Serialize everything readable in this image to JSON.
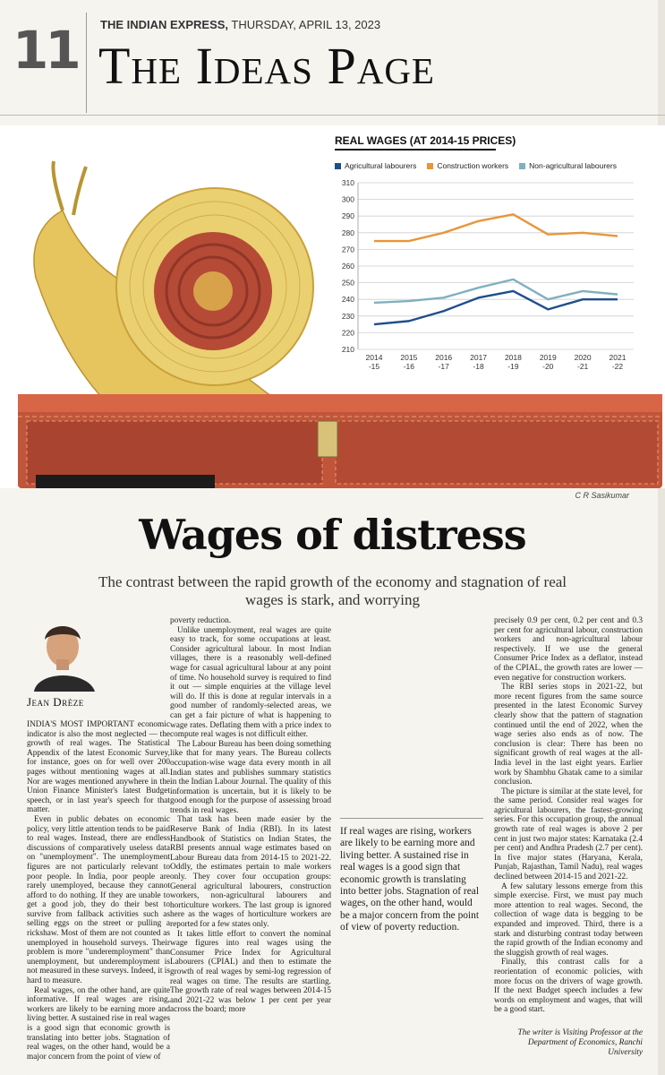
{
  "masthead": {
    "page_number": "11",
    "paper": "THE INDIAN EXPRESS,",
    "date": " THURSDAY, APRIL 13, 2023",
    "section": "The Ideas Page"
  },
  "illustration": {
    "credit": "C R Sasikumar"
  },
  "chart_data": {
    "type": "line",
    "title": "REAL WAGES (AT 2014-15 PRICES)",
    "categories": [
      "2014-15",
      "2015-16",
      "2016-17",
      "2017-18",
      "2018-19",
      "2019-20",
      "2020-21",
      "2021-22"
    ],
    "x_tick_top": [
      "2014",
      "2015",
      "2016",
      "2017",
      "2018",
      "2019",
      "2020",
      "2021"
    ],
    "x_tick_bottom": [
      "-15",
      "-16",
      "-17",
      "-18",
      "-19",
      "-20",
      "-21",
      "-22"
    ],
    "y_ticks": [
      "310",
      "300",
      "290",
      "280",
      "270",
      "260",
      "250",
      "240",
      "230",
      "220",
      "210"
    ],
    "ylim": [
      210,
      310
    ],
    "grid": true,
    "legend_position": "top",
    "series": [
      {
        "name": "Agricultural labourers",
        "color": "#1f4e8c",
        "values": [
          225,
          227,
          233,
          241,
          245,
          234,
          240,
          240
        ]
      },
      {
        "name": "Construction workers",
        "color": "#e8963a",
        "values": [
          275,
          275,
          280,
          287,
          291,
          279,
          280,
          278
        ]
      },
      {
        "name": "Non-agricultural labourers",
        "color": "#7fb0c0",
        "values": [
          238,
          239,
          241,
          247,
          252,
          240,
          245,
          243
        ]
      }
    ]
  },
  "article": {
    "headline": "Wages of distress",
    "deck": "The contrast between the rapid growth of the economy and stagnation of real wages is stark, and worrying",
    "author": "Jean Drèze",
    "col1": [
      "INDIA'S MOST IMPORTANT economic indicator is also the most neglected — the growth of real wages. The Statistical Appendix of the latest Economic Survey, for instance, goes on for well over 200 pages without mentioning wages at all. Nor are wages mentioned anywhere in the Union Finance Minister's latest Budget speech, or in last year's speech for that matter.",
      "Even in public debates on economic policy, very little attention tends to be paid to real wages. Instead, there are endless discussions of comparatively useless data on \"unemployment\". The unemployment figures are not particularly relevant to poor people. In India, poor people are rarely unemployed, because they cannot afford to do nothing. If they are unable to get a good job, they do their best to survive from fallback activities such as selling eggs on the street or pulling a rickshaw. Most of them are not counted as unemployed in household surveys. Their problem is more \"underemployment\" than unemployment, but underemployment is not measured in these surveys. Indeed, it is hard to measure.",
      "Real wages, on the other hand, are quite informative. If real wages are rising, workers are likely to be earning more and living better. A sustained rise in real wages is a good sign that economic growth is translating into better jobs. Stagnation of real wages, on the other hand, would be a major concern from the point of view of"
    ],
    "col2": [
      "poverty reduction.",
      "Unlike unemployment, real wages are quite easy to track, for some occupations at least. Consider agricultural labour. In most Indian villages, there is a reasonably well-defined wage for casual agricultural labour at any point of time. No household survey is required to find it out — simple enquiries at the village level will do. If this is done at regular intervals in a good number of randomly-selected areas, we can get a fair picture of what is happening to wage rates. Deflating them with a price index to compute real wages is not difficult either.",
      "The Labour Bureau has been doing something like that for many years. The Bureau collects occupation-wise wage data every month in all Indian states and publishes summary statistics in the Indian Labour Journal. The quality of this information is uncertain, but it is likely to be good enough for the purpose of assessing broad trends in real wages.",
      "That task has been made easier by the Reserve Bank of India (RBI). In its latest Handbook of Statistics on Indian States, the RBI presents annual wage estimates based on Labour Bureau data from 2014-15 to 2021-22. Oddly, the estimates pertain to male workers only. They cover four occupation groups: General agricultural labourers, construction workers, non-agricultural labourers and horticulture workers. The last group is ignored here as the wages of horticulture workers are reported for a few states only.",
      "It takes little effort to convert the nominal wage figures into real wages using the Consumer Price Index for Agricultural Labourers (CPIAL) and then to estimate the growth of real wages by semi-log regression of real wages on time. The results are startling. The growth rate of real wages between 2014-15 and 2021-22 was below 1 per cent per year across the board; more"
    ],
    "col3": [
      "precisely 0.9 per cent, 0.2 per cent and 0.3 per cent for agricultural labour, construction workers and non-agricultural labour respectively. If we use the general Consumer Price Index as a deflator, instead of the CPIAL, the growth rates are lower — even negative for construction workers.",
      "The RBI series stops in 2021-22, but more recent figures from the same source presented in the latest Economic Survey clearly show that the pattern of stagnation continued until the end of 2022, when the wage series also ends as of now. The conclusion is clear: There has been no significant growth of real wages at the all-India level in the last eight years. Earlier work by Shambhu Ghatak came to a similar conclusion.",
      "The picture is similar at the state level, for the same period. Consider real wages for agricultural labourers, the fastest-growing series. For this occupation group, the annual growth rate of real wages is above 2 per cent in just two major states: Karnataka (2.4 per cent) and Andhra Pradesh (2.7 per cent). In five major states (Haryana, Kerala, Punjab, Rajasthan, Tamil Nadu), real wages declined between 2014-15 and 2021-22.",
      "A few salutary lessons emerge from this simple exercise. First, we must pay much more attention to real wages. Second, the collection of wage data is begging to be expanded and improved. Third, there is a stark and disturbing contrast today between the rapid growth of the Indian economy and the sluggish growth of real wages.",
      "Finally, this contrast calls for a reorientation of economic policies, with more focus on the drivers of wage growth. If the next Budget speech includes a few words on employment and wages, that will be a good start."
    ],
    "pull_quote": "If real wages are rising, workers are likely to be earning more and living better. A sustained rise in real wages is a good sign that economic growth is translating into better jobs. Stagnation of real wages, on the other hand, would be a major concern from the point of view of poverty reduction.",
    "author_note": "The writer is Visiting Professor at the Department of Economics, Ranchi University"
  }
}
